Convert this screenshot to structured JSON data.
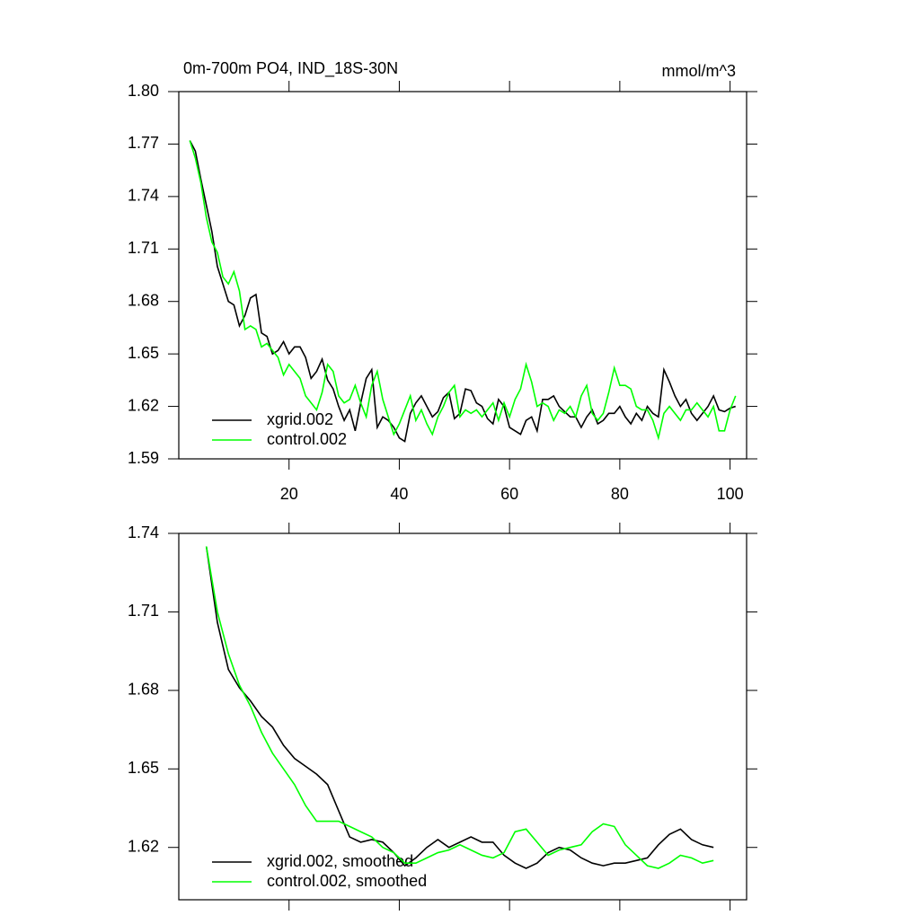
{
  "chart_data": [
    {
      "type": "line",
      "title": "0m-700m PO4, IND_18S-30N",
      "units": "mmol/m^3",
      "x": [
        2,
        3,
        4,
        5,
        6,
        7,
        8,
        9,
        10,
        11,
        12,
        13,
        14,
        15,
        16,
        17,
        18,
        19,
        20,
        21,
        22,
        23,
        24,
        25,
        26,
        27,
        28,
        29,
        30,
        31,
        32,
        33,
        34,
        35,
        36,
        37,
        38,
        39,
        40,
        41,
        42,
        43,
        44,
        45,
        46,
        47,
        48,
        49,
        50,
        51,
        52,
        53,
        54,
        55,
        56,
        57,
        58,
        59,
        60,
        61,
        62,
        63,
        64,
        65,
        66,
        67,
        68,
        69,
        70,
        71,
        72,
        73,
        74,
        75,
        76,
        77,
        78,
        79,
        80,
        81,
        82,
        83,
        84,
        85,
        86,
        87,
        88,
        89,
        90,
        91,
        92,
        93,
        94,
        95,
        96,
        97,
        98,
        99,
        100,
        101
      ],
      "series": [
        {
          "name": "xgrid.002",
          "color": "#000000",
          "values": [
            1.772,
            1.766,
            1.75,
            1.735,
            1.72,
            1.7,
            1.69,
            1.68,
            1.678,
            1.666,
            1.672,
            1.682,
            1.684,
            1.662,
            1.66,
            1.65,
            1.652,
            1.657,
            1.65,
            1.654,
            1.654,
            1.648,
            1.636,
            1.64,
            1.647,
            1.635,
            1.63,
            1.62,
            1.612,
            1.618,
            1.606,
            1.622,
            1.636,
            1.641,
            1.608,
            1.614,
            1.612,
            1.608,
            1.602,
            1.6,
            1.616,
            1.622,
            1.626,
            1.62,
            1.614,
            1.617,
            1.625,
            1.628,
            1.613,
            1.616,
            1.63,
            1.629,
            1.622,
            1.62,
            1.613,
            1.61,
            1.624,
            1.62,
            1.608,
            1.606,
            1.604,
            1.612,
            1.614,
            1.606,
            1.624,
            1.624,
            1.626,
            1.62,
            1.617,
            1.614,
            1.614,
            1.608,
            1.614,
            1.618,
            1.61,
            1.612,
            1.616,
            1.616,
            1.62,
            1.614,
            1.61,
            1.616,
            1.612,
            1.62,
            1.616,
            1.614,
            1.641,
            1.634,
            1.626,
            1.62,
            1.624,
            1.616,
            1.612,
            1.616,
            1.62,
            1.626,
            1.618,
            1.617,
            1.619,
            1.62
          ]
        },
        {
          "name": "control.002",
          "color": "#00ff00",
          "values": [
            1.772,
            1.762,
            1.748,
            1.728,
            1.714,
            1.708,
            1.694,
            1.69,
            1.697,
            1.686,
            1.664,
            1.666,
            1.664,
            1.654,
            1.656,
            1.652,
            1.648,
            1.638,
            1.644,
            1.64,
            1.636,
            1.626,
            1.622,
            1.618,
            1.628,
            1.644,
            1.64,
            1.626,
            1.622,
            1.624,
            1.632,
            1.622,
            1.614,
            1.632,
            1.64,
            1.624,
            1.614,
            1.604,
            1.61,
            1.618,
            1.626,
            1.612,
            1.618,
            1.61,
            1.604,
            1.614,
            1.62,
            1.628,
            1.632,
            1.614,
            1.618,
            1.616,
            1.618,
            1.614,
            1.618,
            1.622,
            1.612,
            1.622,
            1.614,
            1.624,
            1.63,
            1.644,
            1.634,
            1.62,
            1.622,
            1.62,
            1.612,
            1.618,
            1.616,
            1.62,
            1.614,
            1.626,
            1.632,
            1.616,
            1.612,
            1.616,
            1.628,
            1.642,
            1.632,
            1.632,
            1.63,
            1.62,
            1.618,
            1.618,
            1.612,
            1.602,
            1.616,
            1.62,
            1.616,
            1.612,
            1.618,
            1.618,
            1.622,
            1.618,
            1.614,
            1.62,
            1.606,
            1.606,
            1.618,
            1.626
          ]
        }
      ],
      "xlim": [
        0,
        103
      ],
      "xticks": [
        20,
        40,
        60,
        80,
        100
      ],
      "ylim": [
        1.59,
        1.8
      ],
      "yticks": [
        1.59,
        1.62,
        1.65,
        1.68,
        1.71,
        1.74,
        1.77,
        {
          "value": 1.8,
          "label": "1.80"
        }
      ],
      "legend": "lower left"
    },
    {
      "type": "line",
      "x": [
        5,
        7,
        9,
        11,
        13,
        15,
        17,
        19,
        21,
        23,
        25,
        27,
        29,
        31,
        33,
        35,
        37,
        39,
        41,
        43,
        45,
        47,
        49,
        51,
        53,
        55,
        57,
        59,
        61,
        63,
        65,
        67,
        69,
        71,
        73,
        75,
        77,
        79,
        81,
        83,
        85,
        87,
        89,
        91,
        93,
        95,
        97
      ],
      "series": [
        {
          "name": "xgrid.002, smoothed",
          "color": "#000000",
          "values": [
            1.735,
            1.706,
            1.688,
            1.681,
            1.676,
            1.67,
            1.666,
            1.659,
            1.654,
            1.651,
            1.648,
            1.644,
            1.634,
            1.624,
            1.622,
            1.623,
            1.622,
            1.618,
            1.613,
            1.616,
            1.62,
            1.623,
            1.62,
            1.622,
            1.624,
            1.622,
            1.622,
            1.617,
            1.614,
            1.612,
            1.614,
            1.618,
            1.62,
            1.619,
            1.616,
            1.614,
            1.613,
            1.614,
            1.614,
            1.615,
            1.616,
            1.621,
            1.625,
            1.627,
            1.623,
            1.621,
            1.62
          ]
        },
        {
          "name": "control.002, smoothed",
          "color": "#00ff00",
          "values": [
            1.735,
            1.71,
            1.694,
            1.682,
            1.674,
            1.664,
            1.656,
            1.65,
            1.644,
            1.636,
            1.63,
            1.63,
            1.63,
            1.628,
            1.626,
            1.624,
            1.62,
            1.618,
            1.614,
            1.614,
            1.616,
            1.618,
            1.619,
            1.621,
            1.619,
            1.617,
            1.616,
            1.618,
            1.626,
            1.627,
            1.622,
            1.617,
            1.619,
            1.62,
            1.621,
            1.626,
            1.629,
            1.628,
            1.621,
            1.617,
            1.613,
            1.612,
            1.614,
            1.617,
            1.616,
            1.614,
            1.615
          ]
        }
      ],
      "xlim": [
        0,
        103
      ],
      "xticks": [
        20,
        40,
        60,
        80,
        100
      ],
      "ylim": [
        1.6,
        1.74
      ],
      "yticks": [
        1.62,
        1.65,
        1.68,
        1.71,
        1.74
      ],
      "legend": "lower left"
    }
  ]
}
